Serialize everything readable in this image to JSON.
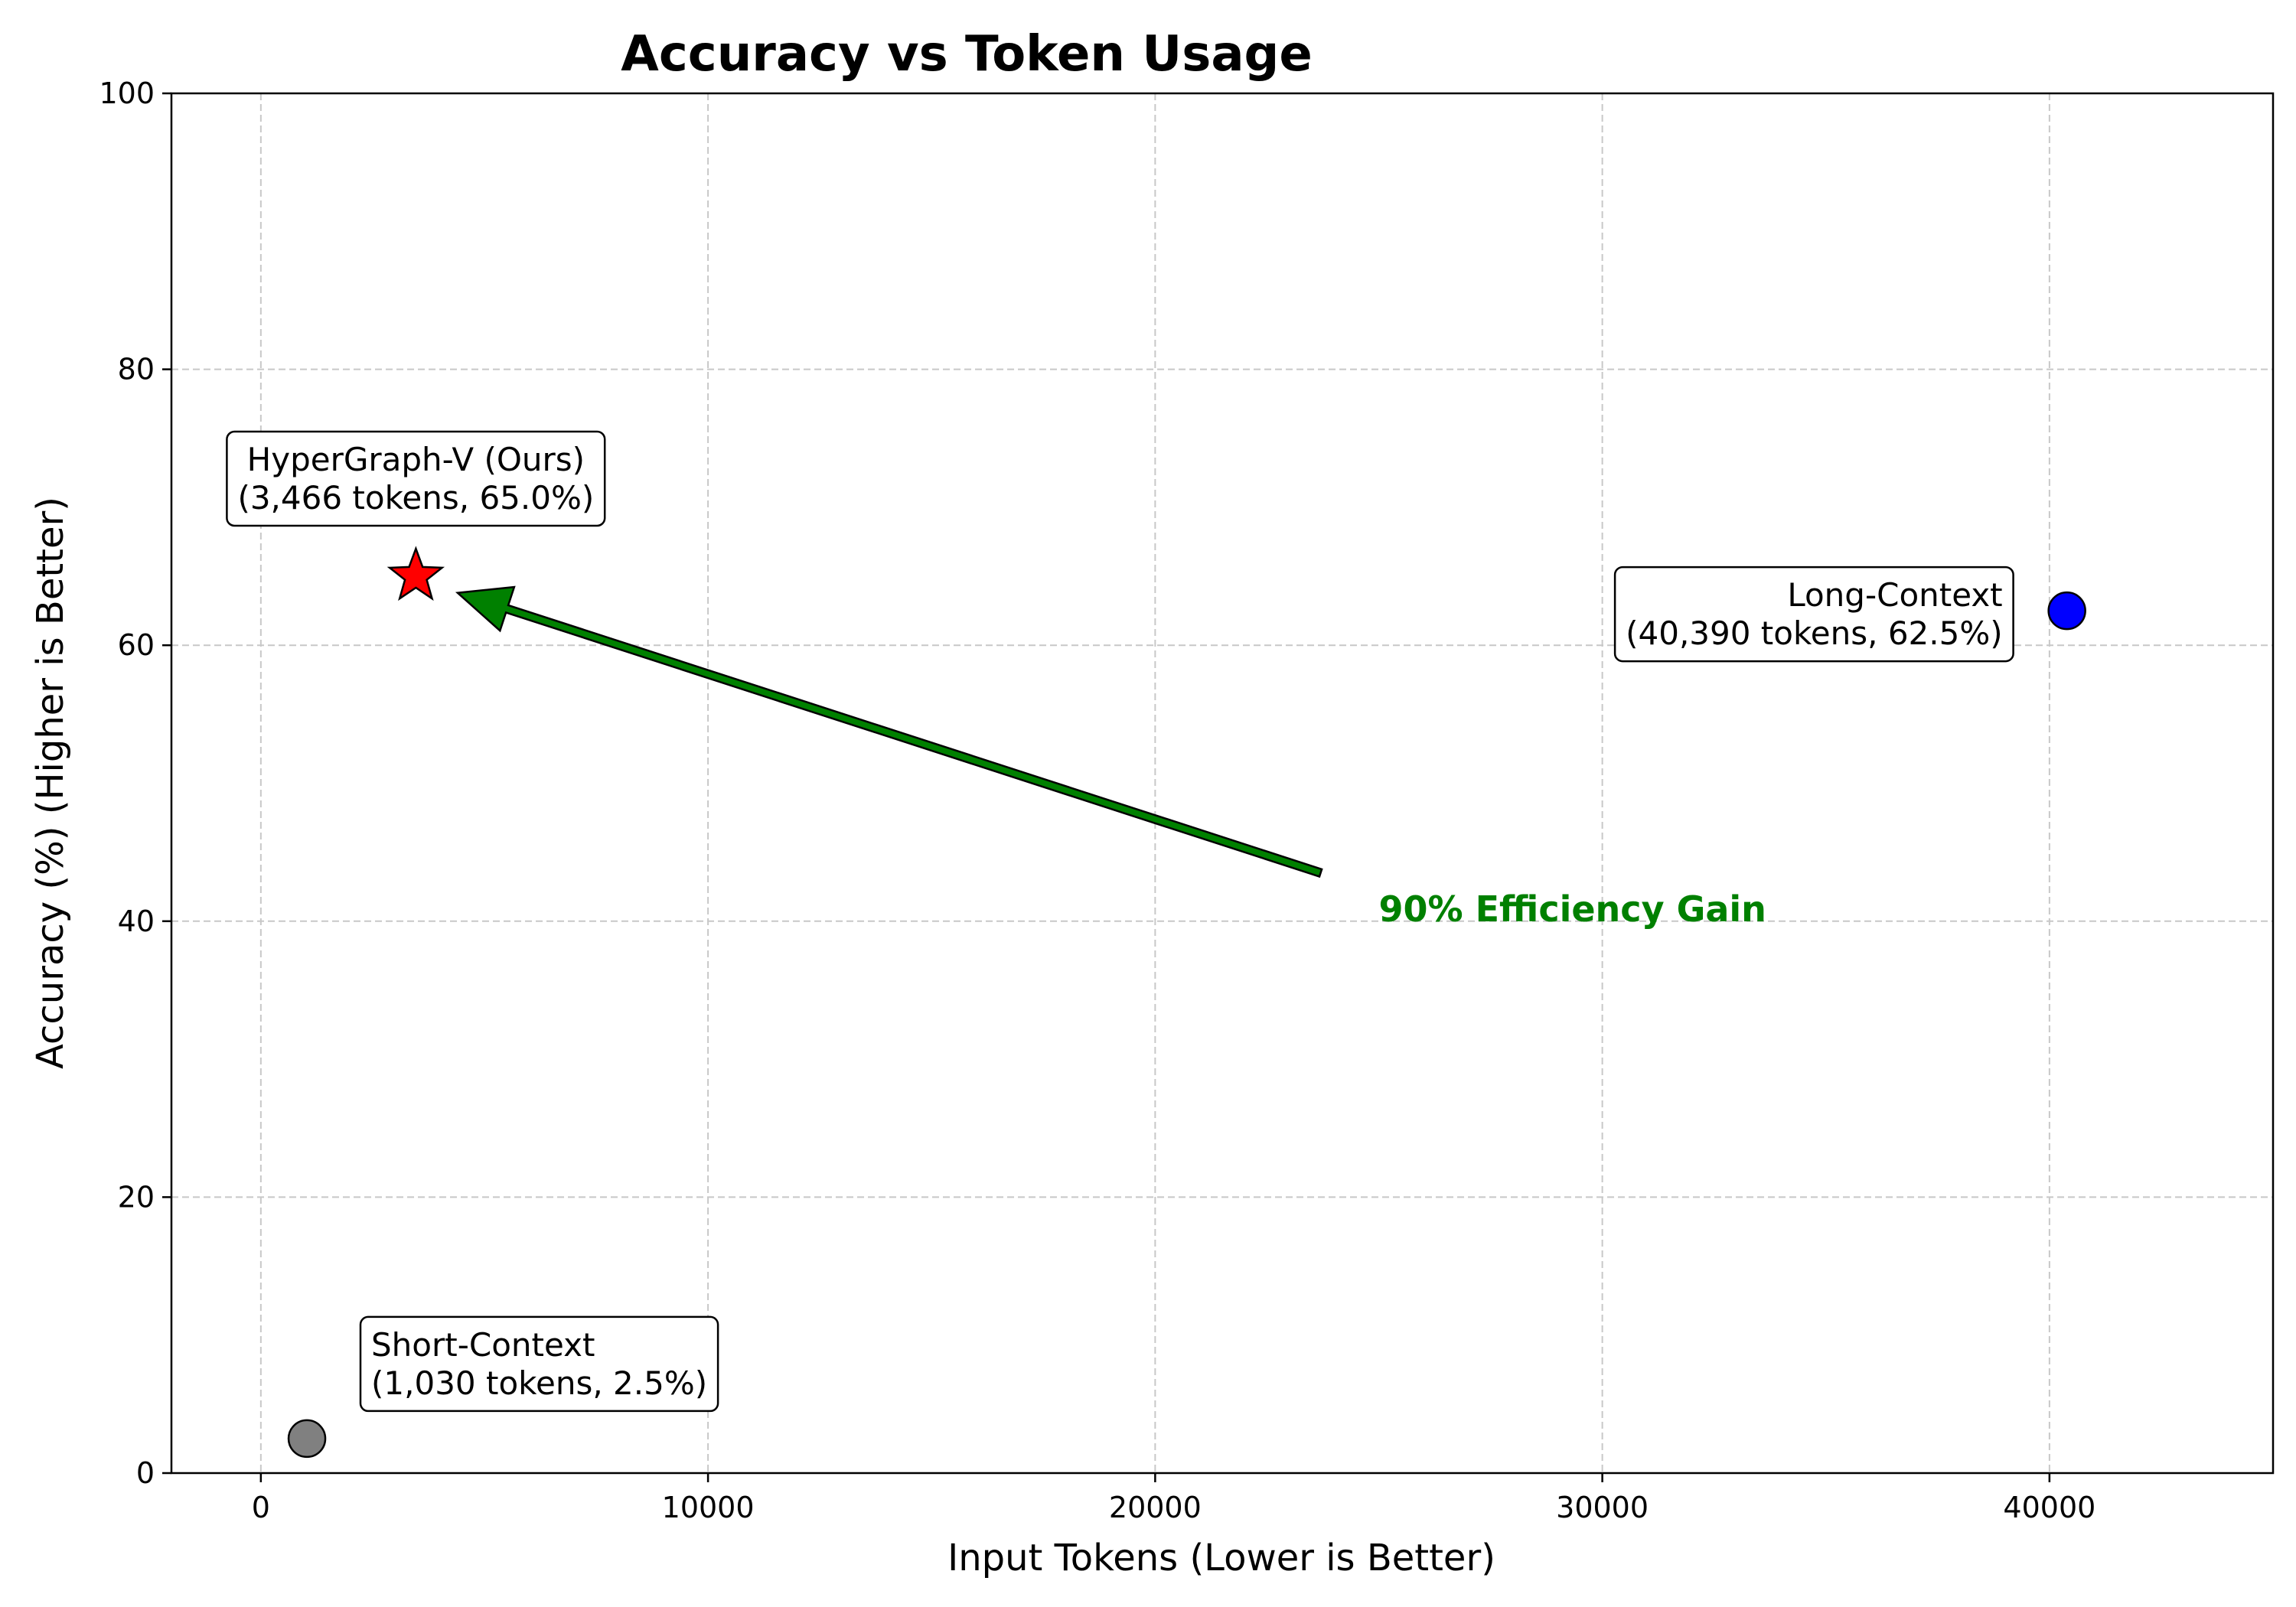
{
  "chart_data": {
    "type": "scatter",
    "title": "Accuracy vs Token Usage",
    "xlabel": "Input Tokens (Lower is Better)",
    "ylabel": "Accuracy (%) (Higher is Better)",
    "xlim": [
      -2000,
      45000
    ],
    "ylim": [
      0,
      100
    ],
    "xticks": [
      0,
      10000,
      20000,
      30000,
      40000
    ],
    "yticks": [
      0,
      20,
      40,
      60,
      80,
      100
    ],
    "grid": true,
    "points": [
      {
        "x": 1030,
        "y": 2.5,
        "marker": "circle",
        "color": "#808080",
        "label": [
          "Short-Context",
          "(1,030 tokens, 2.5%)"
        ]
      },
      {
        "x": 3466,
        "y": 65.0,
        "marker": "star",
        "color": "#ff0000",
        "label": [
          "HyperGraph-V (Ours)",
          "(3,466 tokens, 65.0%)"
        ]
      },
      {
        "x": 40390,
        "y": 62.5,
        "marker": "circle",
        "color": "#0000ff",
        "label": [
          "Long-Context",
          "(40,390 tokens, 62.5%)"
        ]
      }
    ],
    "annotation": {
      "text": "90% Efficiency Gain",
      "color": "#008000",
      "text_x": 25000,
      "text_y": 40,
      "arrow_from": [
        23700,
        43.5
      ],
      "arrow_to": [
        4400,
        63.8
      ]
    }
  }
}
